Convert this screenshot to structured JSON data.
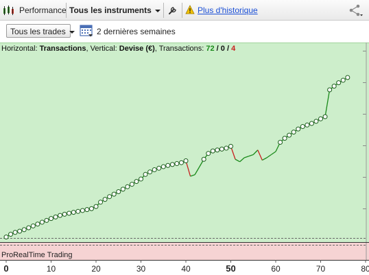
{
  "toolbar": {
    "performance_label": "Performance",
    "instruments_label": "Tous les instruments",
    "history_link": "Plus d'historique"
  },
  "filters": {
    "trades_label": "Tous les trades",
    "period_label": "2 dernières semaines"
  },
  "chart_header": {
    "horizontal_prefix": "Horizontal: ",
    "horizontal_value": "Transactions",
    "vertical_prefix": ", Vertical: ",
    "vertical_value": "Devise (€)",
    "transactions_prefix": ", Transactions: ",
    "wins": "72",
    "sep1": " / ",
    "neutral": "0",
    "sep2": " / ",
    "losses": "4"
  },
  "footer": {
    "label": "ProRealTime Trading"
  },
  "colors": {
    "chart_bg": "#cdeecb",
    "footer_bg": "#f6d3d3",
    "win": "#1a8a1a",
    "loss": "#c81e1e"
  },
  "chart_data": {
    "type": "line",
    "xlabel": "Transactions",
    "ylabel": "Devise (€)",
    "x_ticks": [
      0,
      10,
      20,
      30,
      40,
      50,
      60,
      70,
      80
    ],
    "x_highlight": 50,
    "xlim": [
      0,
      80
    ],
    "ylim": [
      0,
      62
    ],
    "x": [
      0,
      1,
      2,
      3,
      4,
      5,
      6,
      7,
      8,
      9,
      10,
      11,
      12,
      13,
      14,
      15,
      16,
      17,
      18,
      19,
      20,
      21,
      22,
      23,
      24,
      25,
      26,
      27,
      28,
      29,
      30,
      31,
      32,
      33,
      34,
      35,
      36,
      37,
      38,
      39,
      40,
      41,
      42,
      43,
      44,
      45,
      46,
      47,
      48,
      49,
      50,
      51,
      52,
      53,
      54,
      55,
      56,
      57,
      58,
      59,
      60,
      61,
      62,
      63,
      64,
      65,
      66,
      67,
      68,
      69,
      70,
      71,
      72,
      73,
      74,
      75,
      76
    ],
    "y": [
      0.3,
      1.2,
      1.8,
      2.2,
      2.7,
      3.3,
      3.9,
      4.5,
      5.1,
      5.7,
      6.3,
      6.8,
      7.3,
      7.7,
      8.0,
      8.3,
      8.6,
      8.9,
      9.2,
      9.5,
      10.2,
      11.6,
      12.5,
      13.4,
      14.2,
      15.0,
      15.8,
      16.6,
      17.4,
      18.3,
      19.1,
      20.6,
      21.4,
      22.1,
      22.6,
      23.1,
      23.5,
      23.8,
      24.1,
      24.4,
      25.0,
      20.0,
      20.5,
      23.0,
      25.5,
      27.4,
      28.2,
      28.5,
      28.8,
      29.1,
      29.7,
      25.5,
      24.7,
      26.0,
      26.5,
      27.0,
      28.5,
      25.2,
      26.0,
      27.0,
      28.0,
      31.0,
      32.3,
      33.3,
      34.3,
      35.3,
      36.1,
      36.6,
      37.1,
      37.8,
      38.6,
      39.3,
      48.0,
      49.2,
      50.3,
      51.1,
      52.0
    ],
    "markers_at": [
      0,
      1,
      2,
      3,
      4,
      5,
      6,
      7,
      8,
      9,
      10,
      11,
      12,
      13,
      14,
      15,
      16,
      17,
      18,
      19,
      20,
      21,
      22,
      23,
      24,
      25,
      26,
      27,
      28,
      29,
      30,
      31,
      32,
      33,
      34,
      35,
      36,
      37,
      38,
      39,
      40,
      44,
      45,
      46,
      47,
      48,
      49,
      50,
      61,
      62,
      63,
      64,
      65,
      66,
      67,
      68,
      69,
      70,
      71,
      72,
      73,
      74,
      75,
      76
    ],
    "loss_segments": [
      [
        40,
        41
      ],
      [
        50,
        51
      ],
      [
        56,
        57
      ]
    ],
    "grid": false
  }
}
